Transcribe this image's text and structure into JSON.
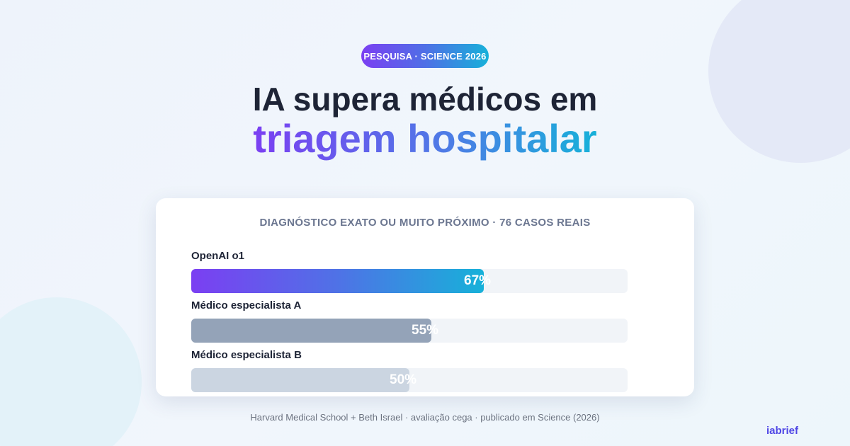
{
  "badge": "PESQUISA · SCIENCE 2026",
  "title": {
    "line1": "IA supera médicos em",
    "line2": "triagem hospitalar"
  },
  "chart_data": {
    "type": "bar",
    "orientation": "horizontal",
    "title": "DIAGNÓSTICO EXATO OU MUITO PRÓXIMO · 76 CASOS REAIS",
    "categories": [
      "OpenAI o1",
      "Médico especialista A",
      "Médico especialista B"
    ],
    "values": [
      67,
      55,
      50
    ],
    "value_labels": [
      "67%",
      "55%",
      "50%"
    ],
    "xlim": [
      0,
      100
    ],
    "colors": [
      "gradient:#7b3ff2-#17b1d9",
      "#94a3b8",
      "#cbd5e1"
    ],
    "grid": false
  },
  "footer": {
    "source": "Harvard Medical School + Beth Israel · avaliação cega · publicado em Science (2026)",
    "brand": "iabrief"
  }
}
